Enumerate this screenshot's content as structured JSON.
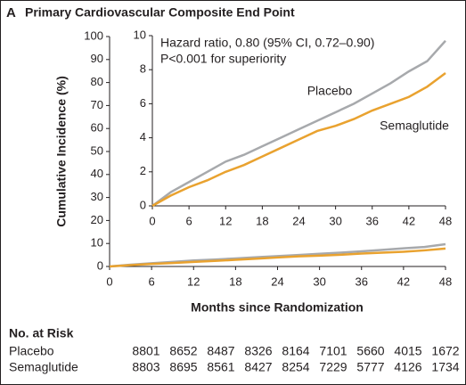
{
  "chart_data": [
    {
      "type": "line",
      "panel_label": "A",
      "title": "Primary Cardiovascular Composite End Point",
      "xlabel": "Months since Randomization",
      "ylabel": "Cumulative Incidence (%)",
      "x": [
        0,
        3,
        6,
        9,
        12,
        15,
        18,
        21,
        24,
        27,
        30,
        33,
        36,
        39,
        42,
        45,
        48
      ],
      "series": [
        {
          "name": "Placebo",
          "color": "#a7a9ac",
          "values": [
            0,
            0.8,
            1.4,
            2.0,
            2.6,
            3.0,
            3.5,
            4.0,
            4.5,
            5.0,
            5.5,
            6.0,
            6.6,
            7.2,
            7.9,
            8.5,
            9.7
          ]
        },
        {
          "name": "Semaglutide",
          "color": "#e9a22f",
          "values": [
            0,
            0.6,
            1.1,
            1.5,
            2.0,
            2.4,
            2.9,
            3.4,
            3.9,
            4.4,
            4.7,
            5.1,
            5.6,
            6.0,
            6.4,
            7.0,
            7.8
          ]
        }
      ],
      "xlim": [
        0,
        48
      ],
      "xticks": [
        0,
        6,
        12,
        18,
        24,
        30,
        36,
        42,
        48
      ],
      "ylim": [
        0,
        100
      ],
      "yticks": [
        0,
        10,
        20,
        30,
        40,
        50,
        60,
        70,
        80,
        90,
        100
      ]
    },
    {
      "type": "line",
      "annotations": [
        "Hazard ratio, 0.80 (95% CI, 0.72–0.90)",
        "P<0.001 for superiority"
      ],
      "xlim": [
        0,
        48
      ],
      "xticks": [
        0,
        6,
        12,
        18,
        24,
        30,
        36,
        42,
        48
      ],
      "ylim": [
        0,
        10
      ],
      "yticks": [
        0,
        2,
        4,
        6,
        8,
        10
      ]
    }
  ],
  "at_risk": {
    "title": "No. at Risk",
    "rows": [
      {
        "label": "Placebo",
        "values": [
          8801,
          8652,
          8487,
          8326,
          8164,
          7101,
          5660,
          4015,
          1672
        ]
      },
      {
        "label": "Semaglutide",
        "values": [
          8803,
          8695,
          8561,
          8427,
          8254,
          7229,
          5777,
          4126,
          1734
        ]
      }
    ]
  }
}
